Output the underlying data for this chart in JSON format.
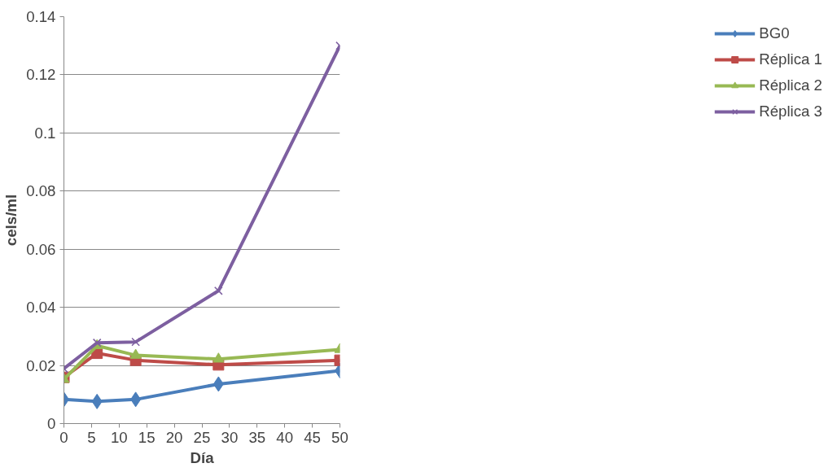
{
  "chart_data": {
    "type": "line",
    "xlabel": "Día",
    "ylabel": "cels/ml",
    "x": [
      0,
      6,
      13,
      28,
      50
    ],
    "xlim": [
      0,
      50
    ],
    "xticks": [
      0,
      5,
      10,
      15,
      20,
      25,
      30,
      35,
      40,
      45,
      50
    ],
    "ylim": [
      0,
      0.14
    ],
    "yticks": [
      0,
      0.02,
      0.04,
      0.06,
      0.08,
      0.1,
      0.12,
      0.14
    ],
    "grid": "y",
    "legend": "right",
    "line_style": "solid",
    "series": [
      {
        "name": "BG0",
        "color": "#4a7ebb",
        "marker": "diamond",
        "values": [
          0.0083,
          0.0076,
          0.0083,
          0.0136,
          0.0182
        ]
      },
      {
        "name": "Réplica 1",
        "color": "#be4b48",
        "marker": "square",
        "values": [
          0.0159,
          0.0242,
          0.0218,
          0.0202,
          0.0218
        ]
      },
      {
        "name": "Réplica 2",
        "color": "#98b954",
        "marker": "triangle",
        "values": [
          0.0152,
          0.0268,
          0.0235,
          0.0222,
          0.0255
        ]
      },
      {
        "name": "Réplica 3",
        "color": "#7d5fa0",
        "marker": "cross",
        "values": [
          0.0189,
          0.0278,
          0.0281,
          0.0457,
          0.13
        ]
      }
    ]
  }
}
